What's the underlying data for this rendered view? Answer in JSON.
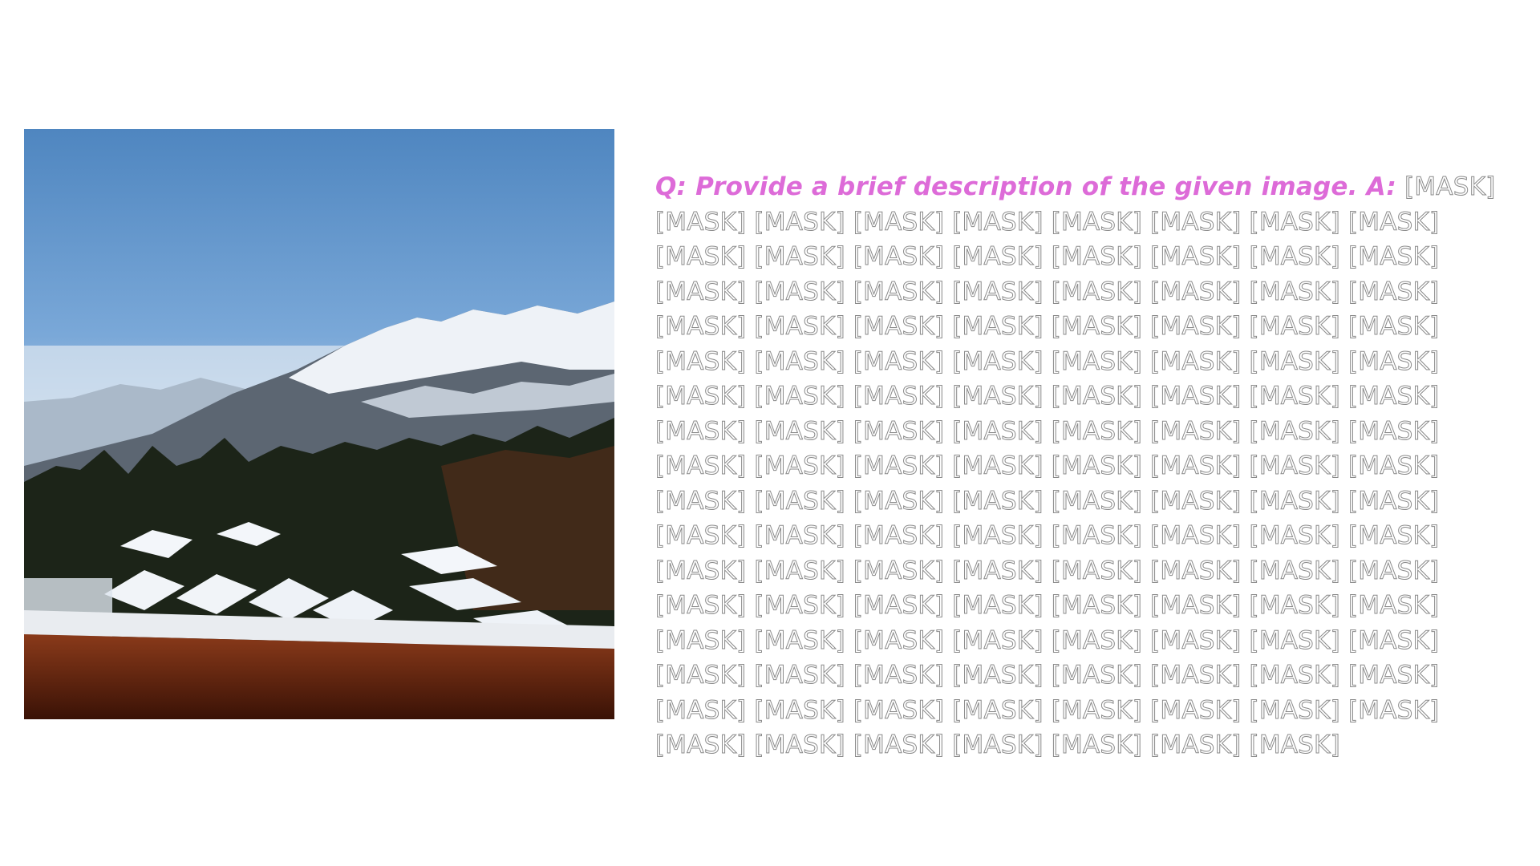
{
  "question": "Q: Provide a brief description of the given image. A:",
  "mask_token": "[MASK]",
  "colors": {
    "question_text": "#dd6bd8",
    "mask_outline": "#8a8a8a"
  }
}
